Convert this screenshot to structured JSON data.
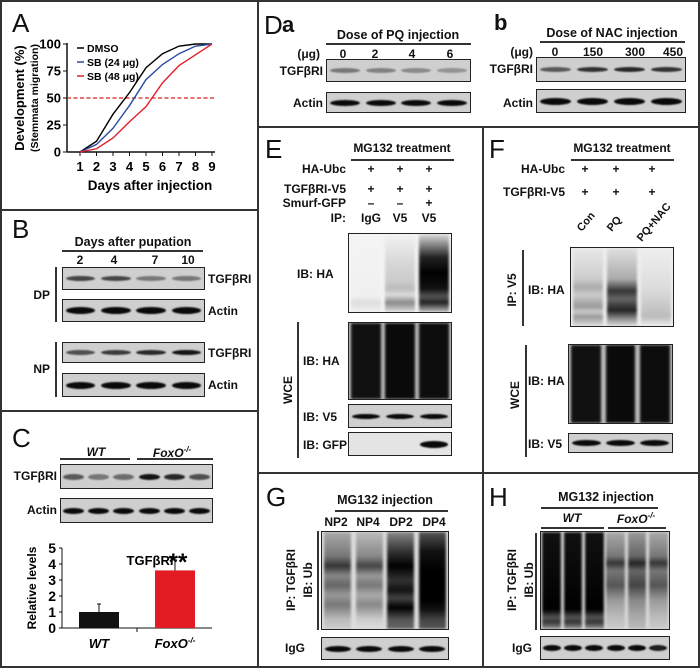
{
  "panels": {
    "A": {
      "label": "A"
    },
    "B": {
      "label": "B",
      "header": "Days after pupation",
      "lanes": [
        "2",
        "4",
        "7",
        "10"
      ],
      "groups": [
        "DP",
        "NP"
      ],
      "rows": [
        "TGFβRI",
        "Actin"
      ]
    },
    "C": {
      "label": "C",
      "groups": [
        "WT",
        "FoxO"
      ],
      "sup": "-/-",
      "rows": [
        "TGFβRI",
        "Actin"
      ]
    },
    "D": {
      "label": "D",
      "a": {
        "label": "a",
        "header": "Dose of PQ injection",
        "unit": "(μg)",
        "lanes": [
          "0",
          "2",
          "4",
          "6"
        ],
        "rows": [
          "TGFβRI",
          "Actin"
        ]
      },
      "b": {
        "label": "b",
        "header": "Dose of NAC injection",
        "unit": "(μg)",
        "lanes": [
          "0",
          "150",
          "300",
          "450"
        ],
        "rows": [
          "TGFβRI",
          "Actin"
        ]
      }
    },
    "E": {
      "label": "E",
      "header": "MG132 treatment",
      "conditions": [
        {
          "name": "HA-Ubc",
          "values": [
            "+",
            "+",
            "+"
          ]
        },
        {
          "name": "TGFβRI-V5",
          "values": [
            "+",
            "+",
            "+"
          ]
        },
        {
          "name": "Smurf-GFP",
          "values": [
            "–",
            "–",
            "+"
          ]
        },
        {
          "name": "IP:",
          "values": [
            "IgG",
            "V5",
            "V5"
          ]
        }
      ],
      "wce": "WCE",
      "rows": [
        "IB: HA",
        "IB: HA",
        "IB: V5",
        "IB: GFP"
      ]
    },
    "F": {
      "label": "F",
      "header": "MG132 treatment",
      "conditions": [
        {
          "name": "HA-Ubc",
          "values": [
            "+",
            "+",
            "+"
          ]
        },
        {
          "name": "TGFβRI-V5",
          "values": [
            "+",
            "+",
            "+"
          ]
        }
      ],
      "lanes": [
        "Con",
        "PQ",
        "PQ+NAC"
      ],
      "ip": "IP: V5",
      "wce": "WCE",
      "rows": [
        "IB: HA",
        "IB: HA",
        "IB: V5"
      ]
    },
    "G": {
      "label": "G",
      "header": "MG132 injection",
      "lanes": [
        "NP2",
        "NP4",
        "DP2",
        "DP4"
      ],
      "ip": "IP: TGFβRI",
      "ib": "IB: Ub",
      "igg": "IgG"
    },
    "H": {
      "label": "H",
      "header": "MG132 injection",
      "groups": [
        "WT",
        "FoxO"
      ],
      "sup": "-/-",
      "ip": "IP: TGFβRI",
      "ib": "IB: Ub",
      "igg": "IgG"
    }
  },
  "chart_data": [
    {
      "type": "line",
      "title": "",
      "xlabel": "Days after injection",
      "ylabel": "Development (%)",
      "ylabel2": "(Stemmata migration)",
      "x": [
        1,
        2,
        3,
        4,
        5,
        6,
        7,
        8,
        9
      ],
      "xlim": [
        1,
        9
      ],
      "ylim": [
        0,
        100
      ],
      "yticks": [
        0,
        25,
        50,
        75,
        100
      ],
      "reference_line": {
        "y": 50,
        "color": "#d92020",
        "style": "dashed"
      },
      "legend_position": "top-left",
      "series": [
        {
          "name": "DMSO",
          "color": "#000000",
          "values": [
            0,
            10,
            35,
            55,
            78,
            91,
            98,
            100,
            100
          ]
        },
        {
          "name": "SB (24 μg)",
          "color": "#2a4aa0",
          "values": [
            0,
            7,
            22,
            43,
            67,
            81,
            91,
            98,
            100
          ]
        },
        {
          "name": "SB (48 μg)",
          "color": "#e0202a",
          "values": [
            0,
            3,
            13,
            28,
            42,
            64,
            80,
            90,
            100
          ]
        }
      ]
    },
    {
      "type": "bar",
      "title": "TGFβRI",
      "ylabel": "Relative levels",
      "categories": [
        "WT",
        "FoxO"
      ],
      "category_sup": [
        "",
        "-/-"
      ],
      "values": [
        1.0,
        3.6
      ],
      "errors": [
        0.5,
        0.65
      ],
      "colors": [
        "#111111",
        "#e31b23"
      ],
      "ylim": [
        0,
        5
      ],
      "yticks": [
        0,
        1,
        2,
        3,
        4,
        5
      ],
      "annotation": "**"
    }
  ]
}
